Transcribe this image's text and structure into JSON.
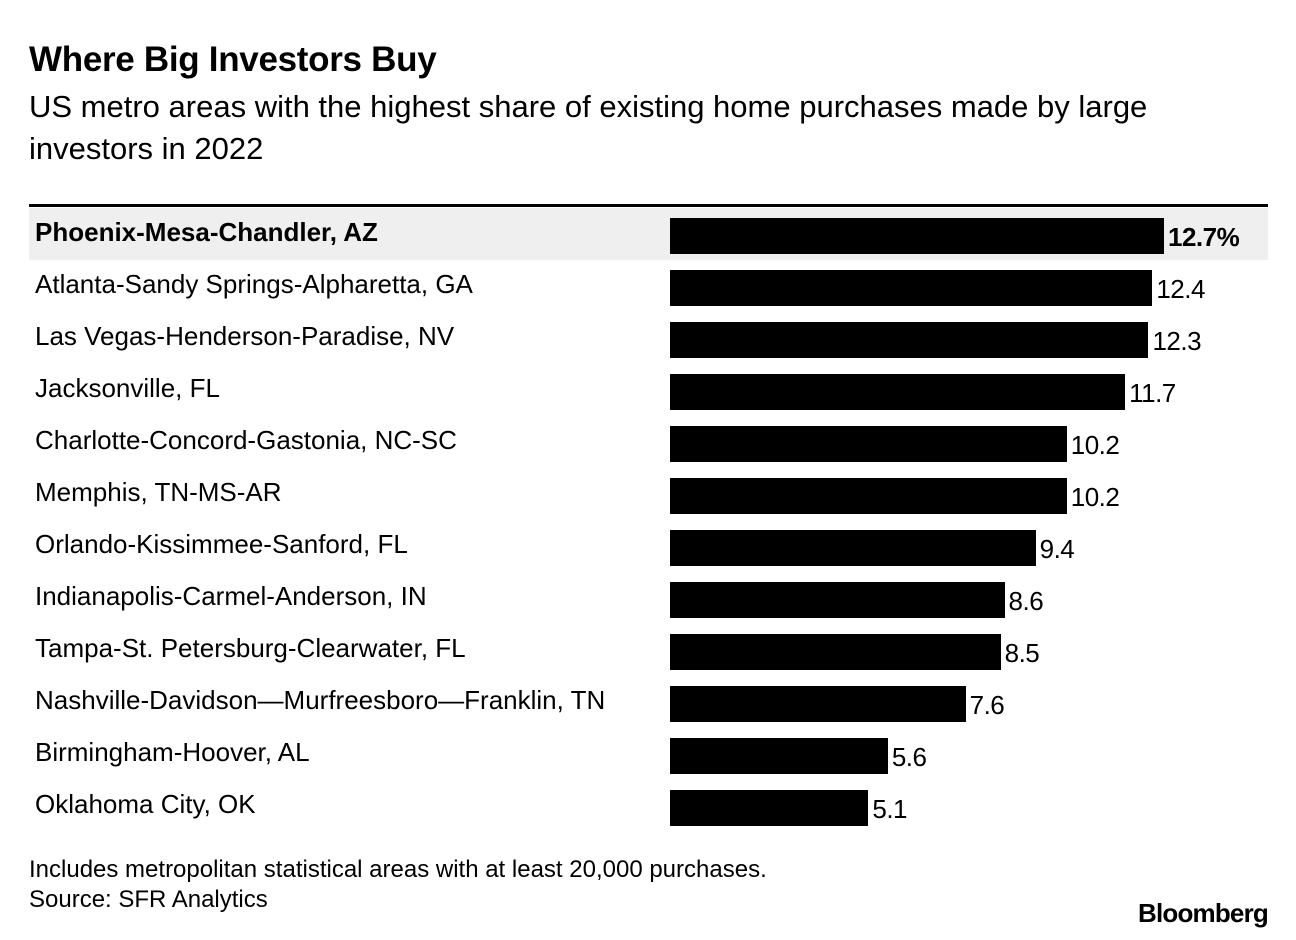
{
  "chart_data": {
    "type": "bar",
    "orientation": "horizontal",
    "title": "Where Big Investors Buy",
    "subtitle": "US metro areas with the highest share of existing home purchases made by large investors in 2022",
    "categories": [
      "Phoenix-Mesa-Chandler, AZ",
      "Atlanta-Sandy Springs-Alpharetta, GA",
      "Las Vegas-Henderson-Paradise, NV",
      "Jacksonville, FL",
      "Charlotte-Concord-Gastonia, NC-SC",
      "Memphis, TN-MS-AR",
      "Orlando-Kissimmee-Sanford, FL",
      "Indianapolis-Carmel-Anderson, IN",
      "Tampa-St. Petersburg-Clearwater, FL",
      "Nashville-Davidson—Murfreesboro—Franklin, TN",
      "Birmingham-Hoover, AL",
      "Oklahoma City, OK"
    ],
    "values": [
      12.7,
      12.4,
      12.3,
      11.7,
      10.2,
      10.2,
      9.4,
      8.6,
      8.5,
      7.6,
      5.6,
      5.1
    ],
    "value_labels": [
      "12.7%",
      "12.4",
      "12.3",
      "11.7",
      "10.2",
      "10.2",
      "9.4",
      "8.6",
      "8.5",
      "7.6",
      "5.6",
      "5.1"
    ],
    "highlight_index": 0,
    "xlim": [
      0,
      12.7
    ],
    "unit": "%",
    "grid": false,
    "bar_color": "#000000",
    "highlight_row_color": "#efefef"
  },
  "footnote": "Includes metropolitan statistical areas with at least 20,000 purchases.",
  "source": "Source: SFR Analytics",
  "brand": "Bloomberg"
}
